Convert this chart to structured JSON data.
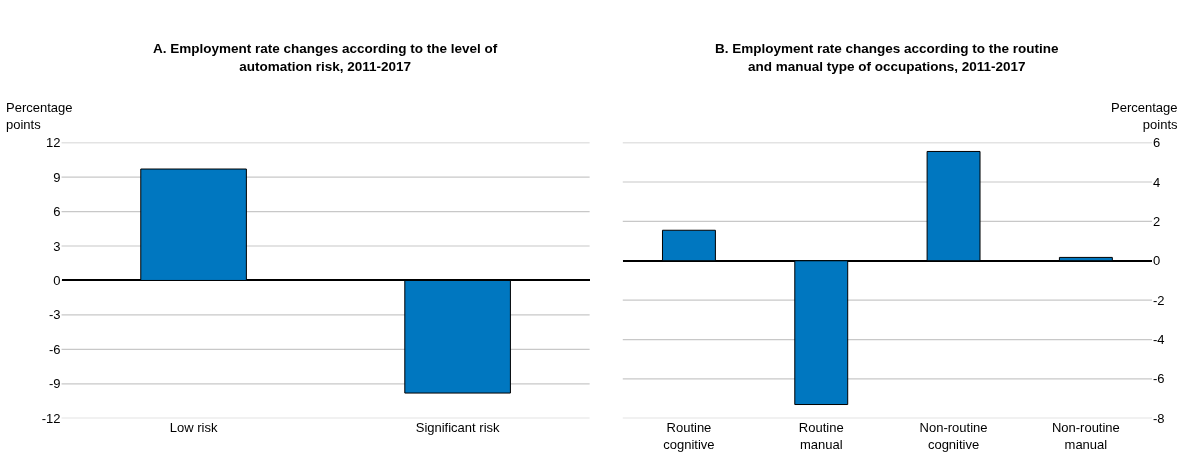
{
  "chart_data": [
    {
      "type": "bar",
      "title": "A. Employment rate changes according to the level of automation risk, 2011-2017",
      "ylabel": "Percentage points",
      "categories": [
        "Low risk",
        "Significant risk"
      ],
      "values": [
        9.7,
        -9.8
      ],
      "color": "#0077c0",
      "ylim": [
        -12,
        12
      ],
      "yticks": [
        -12,
        -9,
        -6,
        -3,
        0,
        3,
        6,
        9,
        12
      ],
      "grid": "y"
    },
    {
      "type": "bar",
      "title": "B. Employment rate changes according to the routine and manual type of occupations, 2011-2017",
      "ylabel": "Percentage points",
      "categories": [
        "Routine cognitive",
        "Routine manual",
        "Non-routine cognitive",
        "Non-routine manual"
      ],
      "values": [
        1.55,
        -7.3,
        5.55,
        0.17
      ],
      "color": "#0077c0",
      "ylim": [
        -8,
        6
      ],
      "yticks": [
        -8,
        -6,
        -4,
        -2,
        0,
        2,
        4,
        6
      ],
      "grid": "y"
    }
  ]
}
